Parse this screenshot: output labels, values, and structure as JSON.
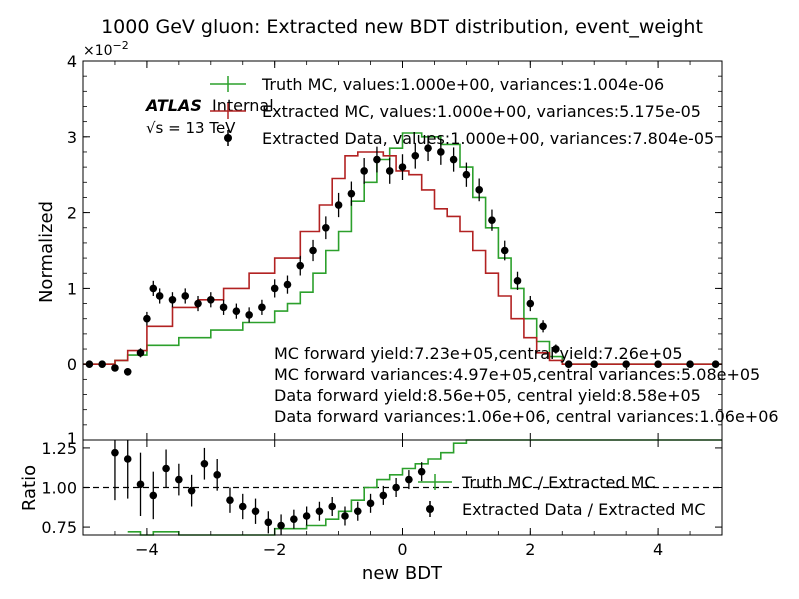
{
  "chart_data": [
    {
      "panel": "main",
      "type": "line",
      "title": "1000 GeV gluon: Extracted new BDT distribution, event_weight",
      "ylabel": "Normalized",
      "y_multiplier": "×10",
      "y_multiplier_exp": "−2",
      "xlim": [
        -5,
        5
      ],
      "ylim": [
        -1,
        4
      ],
      "x_ticks": [
        -4,
        -2,
        0,
        2,
        4
      ],
      "y_ticks": [
        0,
        1,
        2,
        3,
        4
      ],
      "y_tick_labels": [
        "0",
        "1",
        "2",
        "3",
        "4"
      ],
      "y_bottom_tick_label": "1",
      "grid": false,
      "legend_position": "top-right",
      "atlas_label": "ATLAS",
      "atlas_sublabel": "Internal",
      "energy_label": "√s = 13 TeV",
      "annotations": [
        "MC forward yield:7.23e+05,central yield:7.26e+05",
        "MC forward variances:4.97e+05,central variances:5.08e+05",
        "Data forward yield:8.56e+05, central yield:8.58e+05",
        "Data forward variances:1.06e+06, central variances:1.06e+06"
      ],
      "series": [
        {
          "name": "Truth MC, values:1.000e+00, variances:1.004e-06",
          "style": "step",
          "color": "#2ca02c",
          "x": [
            -5.0,
            -4.5,
            -4.3,
            -4.0,
            -3.5,
            -3.0,
            -2.5,
            -2.0,
            -1.8,
            -1.6,
            -1.4,
            -1.2,
            -1.0,
            -0.8,
            -0.6,
            -0.4,
            -0.2,
            0.0,
            0.3,
            0.6,
            0.9,
            1.1,
            1.3,
            1.5,
            1.7,
            1.9,
            2.1,
            2.3,
            2.5,
            3.0,
            5.0
          ],
          "y": [
            0.0,
            0.05,
            0.12,
            0.25,
            0.35,
            0.45,
            0.55,
            0.7,
            0.8,
            0.95,
            1.2,
            1.5,
            1.75,
            2.15,
            2.4,
            2.7,
            2.85,
            3.05,
            3.0,
            2.9,
            2.6,
            2.2,
            1.8,
            1.4,
            1.0,
            0.6,
            0.3,
            0.1,
            0.0,
            0.0,
            0.0
          ]
        },
        {
          "name": "Extracted MC, values:1.000e+00, variances:5.175e-05",
          "style": "step",
          "color": "#b22222",
          "x": [
            -5.0,
            -4.5,
            -4.3,
            -4.0,
            -3.6,
            -3.2,
            -2.8,
            -2.4,
            -2.0,
            -1.6,
            -1.3,
            -1.1,
            -0.9,
            -0.7,
            -0.5,
            -0.3,
            -0.1,
            0.1,
            0.3,
            0.5,
            0.7,
            0.9,
            1.1,
            1.3,
            1.5,
            1.7,
            1.9,
            2.1,
            2.3,
            2.5,
            5.0
          ],
          "y": [
            0.0,
            0.05,
            0.18,
            0.5,
            0.75,
            0.85,
            1.0,
            1.2,
            1.4,
            1.75,
            2.1,
            2.45,
            2.75,
            2.8,
            2.8,
            2.75,
            2.55,
            2.5,
            2.3,
            2.05,
            1.95,
            1.75,
            1.5,
            1.2,
            0.9,
            0.6,
            0.35,
            0.15,
            0.05,
            0.0,
            0.0
          ]
        },
        {
          "name": "Extracted Data, values:1.000e+00, variances:7.804e-05",
          "style": "errorbar",
          "color": "#000000",
          "x": [
            -4.9,
            -4.7,
            -4.5,
            -4.3,
            -4.1,
            -4.0,
            -3.9,
            -3.8,
            -3.6,
            -3.4,
            -3.2,
            -3.0,
            -2.8,
            -2.6,
            -2.4,
            -2.2,
            -2.0,
            -1.8,
            -1.6,
            -1.4,
            -1.2,
            -1.0,
            -0.8,
            -0.6,
            -0.4,
            -0.2,
            0.0,
            0.2,
            0.4,
            0.6,
            0.8,
            1.0,
            1.2,
            1.4,
            1.6,
            1.8,
            2.0,
            2.2,
            2.4,
            2.6,
            3.0,
            3.5,
            4.0,
            4.5,
            4.9
          ],
          "y": [
            0.0,
            0.0,
            -0.05,
            -0.1,
            0.15,
            0.6,
            1.0,
            0.9,
            0.85,
            0.9,
            0.8,
            0.85,
            0.75,
            0.7,
            0.65,
            0.75,
            1.0,
            1.05,
            1.3,
            1.5,
            1.8,
            2.1,
            2.25,
            2.55,
            2.7,
            2.55,
            2.6,
            2.75,
            2.85,
            2.8,
            2.7,
            2.5,
            2.3,
            1.9,
            1.5,
            1.1,
            0.8,
            0.5,
            0.2,
            0.0,
            0.0,
            0.0,
            0.0,
            0.0,
            0.0
          ],
          "yerr": [
            0.03,
            0.03,
            0.04,
            0.05,
            0.06,
            0.09,
            0.1,
            0.1,
            0.1,
            0.1,
            0.1,
            0.1,
            0.1,
            0.1,
            0.1,
            0.1,
            0.12,
            0.12,
            0.13,
            0.14,
            0.15,
            0.16,
            0.16,
            0.17,
            0.17,
            0.17,
            0.17,
            0.17,
            0.17,
            0.17,
            0.16,
            0.16,
            0.15,
            0.14,
            0.13,
            0.12,
            0.1,
            0.08,
            0.06,
            0.03,
            0.02,
            0.02,
            0.02,
            0.02,
            0.02
          ]
        }
      ]
    },
    {
      "panel": "ratio",
      "type": "line",
      "xlabel": "new BDT",
      "ylabel": "Ratio",
      "xlim": [
        -5,
        5
      ],
      "ylim": [
        0.7,
        1.3
      ],
      "x_ticks": [
        -4,
        -2,
        0,
        2,
        4
      ],
      "x_tick_labels": [
        "−4",
        "−2",
        "0",
        "2",
        "4"
      ],
      "y_ticks": [
        0.75,
        1.0,
        1.25
      ],
      "y_tick_labels": [
        "0.75",
        "1.00",
        "1.25"
      ],
      "reference_line": 1.0,
      "legend_position": "right",
      "series": [
        {
          "name": "Truth MC / Extracted MC",
          "style": "step",
          "color": "#2ca02c",
          "x": [
            -4.3,
            -4.1,
            -3.9,
            -3.5,
            -3.0,
            -2.5,
            -2.0,
            -1.5,
            -1.2,
            -1.0,
            -0.8,
            -0.6,
            -0.4,
            -0.2,
            0.0,
            0.2,
            0.4,
            0.6,
            0.8,
            1.0
          ],
          "y": [
            0.72,
            0.7,
            0.72,
            0.7,
            0.7,
            0.7,
            0.74,
            0.76,
            0.8,
            0.85,
            0.92,
            1.0,
            1.05,
            1.08,
            1.12,
            1.15,
            1.18,
            1.22,
            1.28,
            1.3
          ]
        },
        {
          "name": "Extracted Data / Extracted MC",
          "style": "errorbar",
          "color": "#000000",
          "x": [
            -4.5,
            -4.3,
            -4.1,
            -3.9,
            -3.7,
            -3.5,
            -3.3,
            -3.1,
            -2.9,
            -2.7,
            -2.5,
            -2.3,
            -2.1,
            -1.9,
            -1.7,
            -1.5,
            -1.3,
            -1.1,
            -0.9,
            -0.7,
            -0.5,
            -0.3,
            -0.1,
            0.1,
            0.3
          ],
          "y": [
            1.22,
            1.18,
            1.02,
            0.95,
            1.12,
            1.05,
            0.98,
            1.15,
            1.08,
            0.92,
            0.88,
            0.85,
            0.78,
            0.76,
            0.8,
            0.82,
            0.85,
            0.88,
            0.82,
            0.85,
            0.9,
            0.95,
            1.0,
            1.05,
            1.1
          ],
          "yerr": [
            0.3,
            0.25,
            0.2,
            0.15,
            0.12,
            0.1,
            0.1,
            0.1,
            0.1,
            0.08,
            0.08,
            0.08,
            0.07,
            0.07,
            0.06,
            0.06,
            0.06,
            0.06,
            0.06,
            0.06,
            0.06,
            0.06,
            0.06,
            0.06,
            0.06
          ]
        }
      ]
    }
  ]
}
